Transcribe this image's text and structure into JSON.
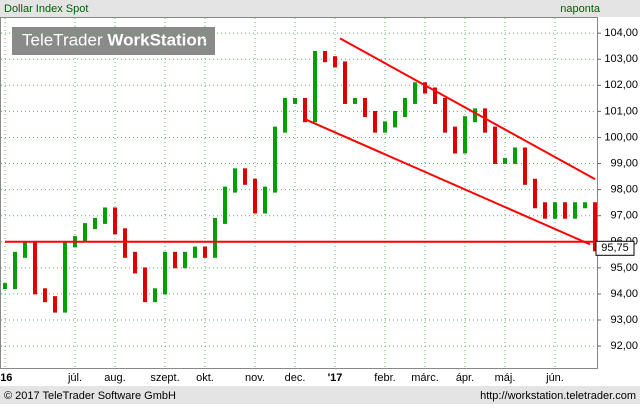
{
  "header": {
    "instrument": "Dollar Index Spot",
    "interval": "naponta"
  },
  "watermark": {
    "brand": "TeleTrader",
    "product": "WorkStation"
  },
  "footer": {
    "copyright": "© 2017 TeleTrader Software GmbH",
    "url": "http://workstation.teletrader.com"
  },
  "chart_data": {
    "type": "bar",
    "categories": [
      "'16",
      null,
      null,
      null,
      null,
      null,
      null,
      "júl.",
      null,
      null,
      null,
      "aug.",
      null,
      null,
      null,
      null,
      "szept.",
      null,
      null,
      null,
      "okt.",
      null,
      null,
      null,
      null,
      "nov.",
      null,
      null,
      null,
      "dec.",
      null,
      null,
      null,
      "'17",
      null,
      null,
      null,
      null,
      "febr.",
      null,
      null,
      null,
      "márc.",
      null,
      null,
      null,
      "ápr.",
      null,
      null,
      null,
      "máj.",
      null,
      null,
      null,
      null,
      "jún.",
      null,
      null,
      null,
      null
    ],
    "values": [
      94.3,
      95.5,
      95.9,
      94.1,
      93.8,
      93.4,
      95.9,
      96.1,
      96.6,
      96.8,
      97.2,
      96.4,
      95.5,
      94.9,
      93.8,
      94.1,
      95.5,
      95.1,
      95.5,
      95.7,
      95.5,
      96.8,
      98.0,
      98.7,
      98.3,
      97.2,
      98.0,
      100.3,
      101.4,
      101.4,
      100.7,
      103.2,
      103.0,
      102.8,
      101.4,
      101.4,
      100.9,
      100.3,
      100.5,
      100.9,
      101.4,
      102.0,
      101.8,
      101.4,
      100.3,
      99.5,
      100.7,
      101.0,
      100.3,
      99.1,
      99.1,
      99.5,
      98.3,
      97.4,
      97.0,
      97.4,
      97.0,
      97.4,
      97.4,
      95.75
    ],
    "last_label": "95,75",
    "up_color": "#00a000",
    "down_color": "#e00000",
    "line_color": "#ff0000",
    "ylim": [
      91.16,
      104.58
    ],
    "yticks": [
      {
        "value": 92,
        "label": "92,00"
      },
      {
        "value": 93,
        "label": "93,00"
      },
      {
        "value": 94,
        "label": "94,00"
      },
      {
        "value": 95,
        "label": "95,00"
      },
      {
        "value": 96,
        "label": "96,00"
      },
      {
        "value": 97,
        "label": "97,00"
      },
      {
        "value": 98,
        "label": "98,00"
      },
      {
        "value": 99,
        "label": "99,00"
      },
      {
        "value": 100,
        "label": "100,00"
      },
      {
        "value": 101,
        "label": "101,00"
      },
      {
        "value": 102,
        "label": "102,00"
      },
      {
        "value": 103,
        "label": "103,00"
      },
      {
        "value": 104,
        "label": "104,00"
      }
    ],
    "trend_lines": [
      {
        "x": [
          0,
          59
        ],
        "y": [
          96.0,
          96.0
        ]
      },
      {
        "x": [
          33.5,
          59
        ],
        "y": [
          103.8,
          98.4
        ]
      },
      {
        "x": [
          30,
          58.5
        ],
        "y": [
          100.7,
          95.9
        ]
      }
    ],
    "grid": true
  }
}
